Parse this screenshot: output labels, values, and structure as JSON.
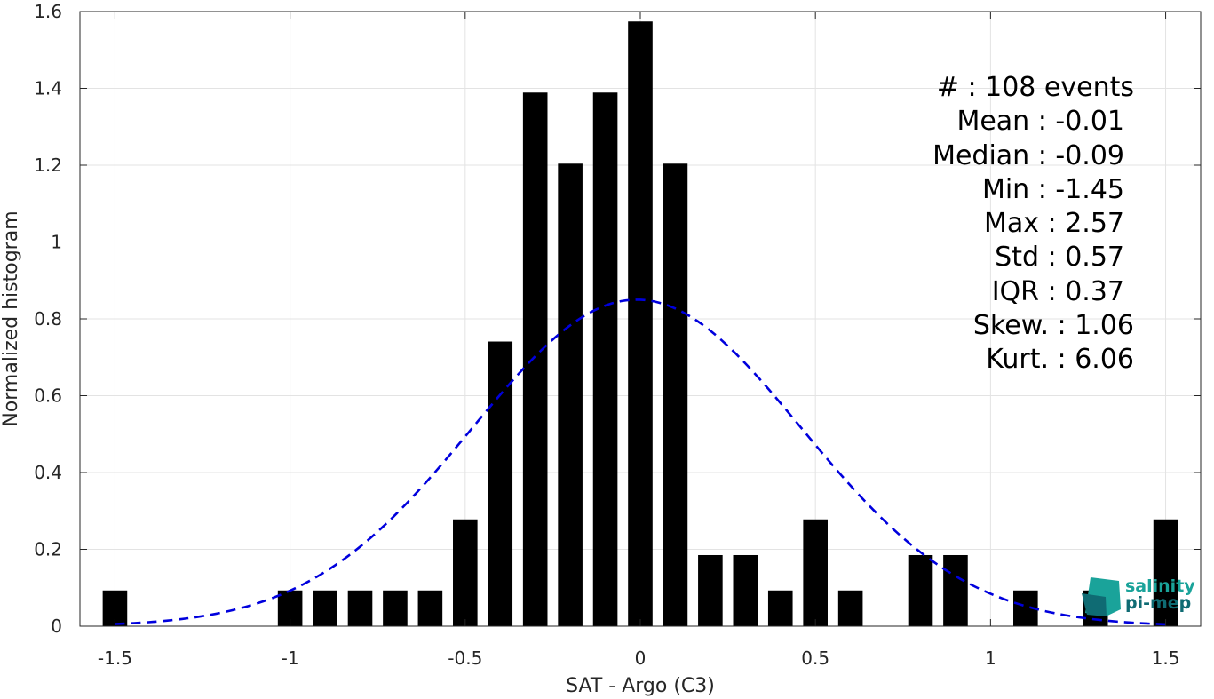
{
  "chart_data": {
    "type": "bar",
    "xlabel": "SAT - Argo (C3)",
    "ylabel": "Normalized histogram",
    "xlim": [
      -1.6,
      1.6
    ],
    "ylim": [
      0,
      1.6
    ],
    "xticks": [
      -1.5,
      -1,
      -0.5,
      0,
      0.5,
      1,
      1.5
    ],
    "xtick_labels": [
      "-1.5",
      "-1",
      "-0.5",
      "0",
      "0.5",
      "1",
      "1.5"
    ],
    "yticks": [
      0,
      0.2,
      0.4,
      0.6,
      0.8,
      1,
      1.2,
      1.4,
      1.6
    ],
    "ytick_labels": [
      "0",
      "0.2",
      "0.4",
      "0.6",
      "0.8",
      "1",
      "1.2",
      "1.4",
      "1.6"
    ],
    "grid": true,
    "bar_color": "#000000",
    "bin_width": 0.1,
    "bins": [
      {
        "x": -1.5,
        "value": 0.093
      },
      {
        "x": -1.0,
        "value": 0.093
      },
      {
        "x": -0.9,
        "value": 0.093
      },
      {
        "x": -0.8,
        "value": 0.093
      },
      {
        "x": -0.7,
        "value": 0.093
      },
      {
        "x": -0.6,
        "value": 0.093
      },
      {
        "x": -0.5,
        "value": 0.278
      },
      {
        "x": -0.4,
        "value": 0.741
      },
      {
        "x": -0.3,
        "value": 1.389
      },
      {
        "x": -0.2,
        "value": 1.204
      },
      {
        "x": -0.1,
        "value": 1.389
      },
      {
        "x": 0.0,
        "value": 1.574
      },
      {
        "x": 0.1,
        "value": 1.204
      },
      {
        "x": 0.2,
        "value": 0.185
      },
      {
        "x": 0.3,
        "value": 0.185
      },
      {
        "x": 0.4,
        "value": 0.093
      },
      {
        "x": 0.5,
        "value": 0.278
      },
      {
        "x": 0.6,
        "value": 0.093
      },
      {
        "x": 0.8,
        "value": 0.185
      },
      {
        "x": 0.9,
        "value": 0.185
      },
      {
        "x": 1.1,
        "value": 0.093
      },
      {
        "x": 1.3,
        "value": 0.093
      },
      {
        "x": 1.5,
        "value": 0.278
      }
    ],
    "fit_curve": {
      "type": "gaussian",
      "color": "#0000dd",
      "style": "dashed",
      "mean": -0.01,
      "std": 0.47,
      "peak": 0.85,
      "x_range": [
        -1.5,
        1.5
      ]
    },
    "stats": {
      "lines": [
        "#  : 108 events",
        "Mean : -0.01",
        "Median : -0.09",
        "Min : -1.45",
        "Max : 2.57",
        "Std : 0.57",
        "IQR : 0.37",
        "Skew. : 1.06",
        "Kurt. : 6.06"
      ]
    }
  },
  "logo": {
    "line1": "salinity",
    "line2": "pi-mep",
    "color_primary": "#1aa39a",
    "color_secondary": "#0f6b73"
  }
}
